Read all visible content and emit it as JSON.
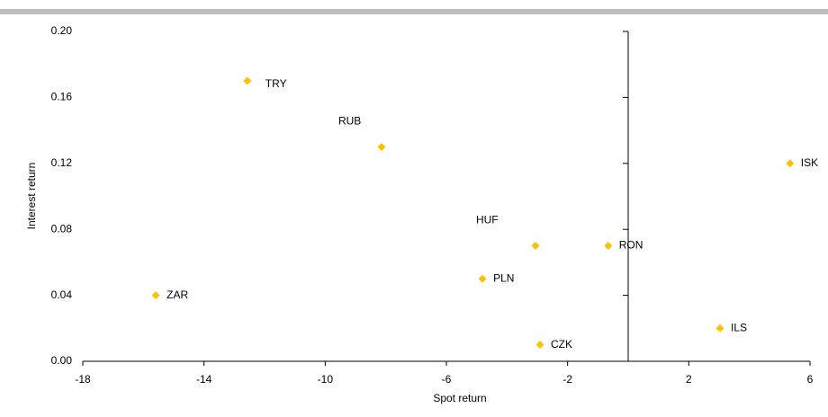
{
  "chart_data": {
    "type": "scatter",
    "x_label": "Spot return",
    "y_label": "Interest return",
    "labels": [
      "TRY",
      "RUB",
      "HUF",
      "RON",
      "ISK",
      "ILS",
      "CZK",
      "PLN",
      "ZAR"
    ],
    "x": [
      -12.57,
      -8.14,
      -3.06,
      -0.66,
      5.34,
      3.03,
      -2.91,
      -4.81,
      -15.59
    ],
    "values": [
      0.17,
      0.13,
      0.07,
      0.07,
      0.12,
      0.02,
      0.01,
      0.05,
      0.04
    ],
    "color": "#ffc000",
    "xlim": [
      -18,
      6
    ],
    "xticks": [
      -18,
      -14,
      -10,
      -6,
      -2,
      2,
      6
    ],
    "ylim": [
      0,
      0.2
    ],
    "yticks": [
      {
        "value": 0,
        "label": "0.00"
      },
      {
        "value": 0.04,
        "label": "0.04"
      },
      {
        "value": 0.08,
        "label": "0.08"
      },
      {
        "value": 0.12,
        "label": "0.12"
      },
      {
        "value": 0.16,
        "label": "0.16"
      },
      {
        "value": 0.2,
        "label": "0.20"
      }
    ]
  }
}
